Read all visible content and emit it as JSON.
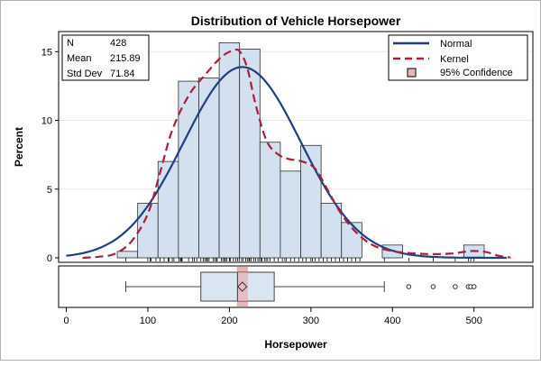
{
  "chart_data": {
    "type": "histogram",
    "title": "Distribution of Vehicle Horsepower",
    "xlabel": "Horsepower",
    "ylabel": "Percent",
    "xlim": [
      -5,
      570
    ],
    "ylim": [
      0,
      16.2
    ],
    "x_ticks": [
      0,
      100,
      200,
      300,
      400,
      500
    ],
    "y_ticks": [
      0,
      5,
      10,
      15
    ],
    "grid": true,
    "colors": {
      "bar_fill": "#d3e0f0",
      "bar_stroke": "#303030",
      "normal": "#1f3f7f",
      "kernel": "#a8203a",
      "confidence": "#e8b4b4",
      "grid": "#e8e8e8"
    },
    "bins": {
      "start": 62.5,
      "width": 25,
      "values": [
        0.47,
        3.97,
        7.01,
        12.85,
        13.08,
        15.65,
        15.19,
        8.41,
        6.31,
        8.18,
        3.97,
        2.57,
        0,
        0.93,
        0,
        0,
        0,
        0.93
      ]
    },
    "stats": {
      "rows": [
        {
          "label": "N",
          "value": "428"
        },
        {
          "label": "Mean",
          "value": "215.89"
        },
        {
          "label": "Std Dev",
          "value": "71.84"
        }
      ]
    },
    "normal": {
      "name": "Normal",
      "mean": 215.89,
      "sd": 71.84,
      "from": 0,
      "to": 540
    },
    "kernel": {
      "name": "Kernel",
      "points": [
        [
          20,
          0.0
        ],
        [
          40,
          0.08
        ],
        [
          60,
          0.3
        ],
        [
          80,
          1.2
        ],
        [
          100,
          3.2
        ],
        [
          115,
          6.2
        ],
        [
          130,
          9.3
        ],
        [
          150,
          11.8
        ],
        [
          170,
          13.3
        ],
        [
          190,
          14.6
        ],
        [
          205,
          15.1
        ],
        [
          213,
          15.0
        ],
        [
          222,
          13.8
        ],
        [
          232,
          11.2
        ],
        [
          245,
          8.6
        ],
        [
          258,
          7.6
        ],
        [
          272,
          7.2
        ],
        [
          290,
          7.0
        ],
        [
          305,
          6.5
        ],
        [
          320,
          5.0
        ],
        [
          335,
          3.4
        ],
        [
          350,
          2.2
        ],
        [
          365,
          1.35
        ],
        [
          380,
          0.8
        ],
        [
          395,
          0.55
        ],
        [
          410,
          0.4
        ],
        [
          440,
          0.28
        ],
        [
          470,
          0.3
        ],
        [
          490,
          0.45
        ],
        [
          500,
          0.5
        ],
        [
          515,
          0.42
        ],
        [
          530,
          0.15
        ],
        [
          545,
          0.02
        ]
      ]
    },
    "confidence": {
      "name": "95% Confidence",
      "low": 209.1,
      "high": 222.7
    },
    "boxplot": {
      "whisker_low": 73,
      "q1": 165,
      "median": 210,
      "mean": 215.89,
      "q3": 255,
      "whisker_high": 390,
      "outliers": [
        420,
        450,
        477,
        493,
        496,
        500
      ]
    },
    "rug": [
      73,
      100,
      103,
      104,
      110,
      115,
      120,
      125,
      126,
      130,
      132,
      138,
      140,
      141,
      142,
      150,
      155,
      157,
      160,
      165,
      168,
      170,
      172,
      173,
      175,
      180,
      182,
      184,
      185,
      190,
      192,
      194,
      195,
      197,
      200,
      201,
      205,
      208,
      210,
      212,
      215,
      217,
      220,
      222,
      224,
      225,
      227,
      230,
      232,
      235,
      237,
      239,
      240,
      243,
      245,
      247,
      250,
      255,
      260,
      265,
      268,
      270,
      275,
      280,
      285,
      290,
      294,
      300,
      302,
      305,
      310,
      315,
      320,
      325,
      330,
      335,
      340,
      345,
      350,
      355,
      360,
      390,
      420,
      450,
      477,
      493,
      496,
      500
    ],
    "legend": [
      {
        "label": "Normal",
        "kind": "line"
      },
      {
        "label": "Kernel",
        "kind": "dash"
      },
      {
        "label": "95% Confidence",
        "kind": "box"
      }
    ]
  }
}
